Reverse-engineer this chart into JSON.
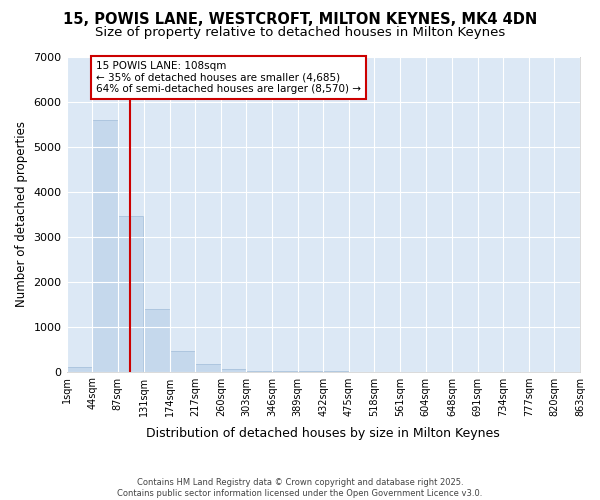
{
  "title1": "15, POWIS LANE, WESTCROFT, MILTON KEYNES, MK4 4DN",
  "title2": "Size of property relative to detached houses in Milton Keynes",
  "xlabel": "Distribution of detached houses by size in Milton Keynes",
  "ylabel": "Number of detached properties",
  "bar_color": "#c5d8ec",
  "bar_edge_color": "#a0bcd8",
  "bin_edges": [
    1,
    44,
    87,
    131,
    174,
    217,
    260,
    303,
    346,
    389,
    432,
    475,
    518,
    561,
    604,
    648,
    691,
    734,
    777,
    820,
    863
  ],
  "bar_heights": [
    100,
    5600,
    3450,
    1380,
    460,
    160,
    60,
    20,
    5,
    2,
    1,
    0,
    0,
    0,
    0,
    0,
    0,
    0,
    0,
    0
  ],
  "property_size": 108,
  "vline_color": "#cc0000",
  "annotation_text": "15 POWIS LANE: 108sqm\n← 35% of detached houses are smaller (4,685)\n64% of semi-detached houses are larger (8,570) →",
  "annotation_box_color": "#cc0000",
  "ylim": [
    0,
    7000
  ],
  "yticks": [
    0,
    1000,
    2000,
    3000,
    4000,
    5000,
    6000,
    7000
  ],
  "background_color": "#dce8f5",
  "fig_background": "#ffffff",
  "grid_color": "#ffffff",
  "footnote": "Contains HM Land Registry data © Crown copyright and database right 2025.\nContains public sector information licensed under the Open Government Licence v3.0.",
  "title1_fontsize": 10.5,
  "title2_fontsize": 9.5
}
